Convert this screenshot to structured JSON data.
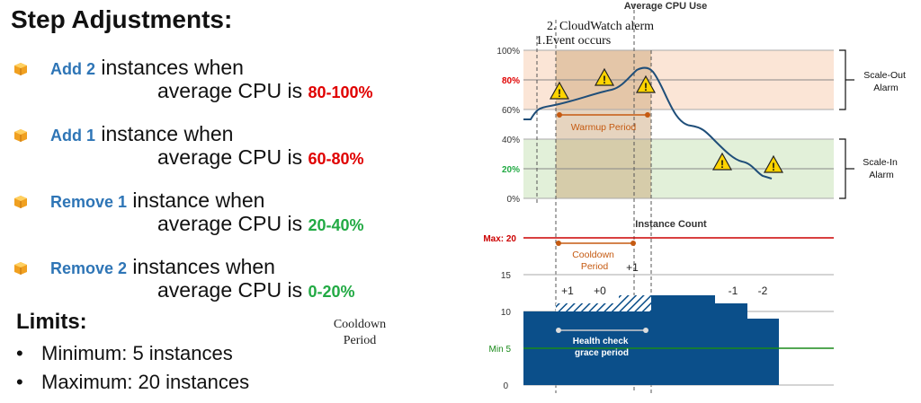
{
  "heading": "Step Adjustments:",
  "rules": [
    {
      "action": "Add 2",
      "middle": " instances when",
      "prefix": "average CPU is ",
      "range": "80-100%",
      "range_color": "red"
    },
    {
      "action": "Add 1",
      "middle": " instance when",
      "prefix": "average CPU is ",
      "range": "60-80%",
      "range_color": "red"
    },
    {
      "action": "Remove 1",
      "middle": " instance when",
      "prefix": "average CPU is ",
      "range": "20-40%",
      "range_color": "green"
    },
    {
      "action": "Remove 2",
      "middle": " instances when",
      "prefix": "average CPU is ",
      "range": "0-20%",
      "range_color": "green"
    }
  ],
  "limits": {
    "title": "Limits:",
    "bullet": "•",
    "items": [
      "Minimum: 5 instances",
      "Maximum: 20 instances"
    ]
  },
  "cooldown_note": "Cooldown\nPeriod",
  "cpu_chart": {
    "title": "Average CPU Use",
    "event_labels": {
      "cloudwatch": "2. CloudWatch alerm",
      "event": "1.Event occurs"
    },
    "y_ticks": [
      "100%",
      "80%",
      "60%",
      "40%",
      "20%",
      "0%"
    ],
    "warmup_label": "Warmup Period",
    "scale_out_label": "Scale-Out\nAlarm",
    "scale_in_label": "Scale-In\nAlarm",
    "colors": {
      "red": "#e00000",
      "green": "#22aa44",
      "line": "#1f4e79",
      "orange": "#c55a11",
      "out_band": "#fbe5d6",
      "in_band": "#e2f0d9"
    }
  },
  "instance_chart": {
    "title": "Instance Count",
    "y_labels": {
      "max": "Max: 20",
      "t15": "15",
      "t10": "10",
      "min": "Min 5",
      "t0": "0"
    },
    "cooldown_label": "Cooldown\nPeriod",
    "health_label": "Health check\ngrace period",
    "step_labels": {
      "plus1_a": "+1",
      "plus0": "+0",
      "plus1_b": "+1",
      "minus1": "-1",
      "minus2": "-2"
    },
    "colors": {
      "bar": "#0b4f8a",
      "max_line": "#cc0000",
      "min_line": "#1a8a1a",
      "orange": "#c55a11"
    }
  }
}
